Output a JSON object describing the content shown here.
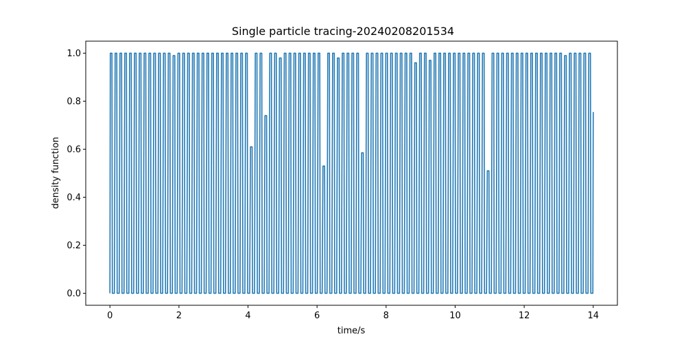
{
  "chart_data": {
    "type": "line",
    "title": "Single particle tracing-20240208201534",
    "xlabel": "time/s",
    "ylabel": "density function",
    "xlim": [
      -0.7,
      14.7
    ],
    "ylim": [
      -0.05,
      1.05
    ],
    "x_ticks": [
      0,
      2,
      4,
      6,
      8,
      10,
      12,
      14
    ],
    "x_tick_labels": [
      "0",
      "2",
      "4",
      "6",
      "8",
      "10",
      "12",
      "14"
    ],
    "y_ticks": [
      0.0,
      0.2,
      0.4,
      0.6,
      0.8,
      1.0
    ],
    "y_tick_labels": [
      "0.0",
      "0.2",
      "0.4",
      "0.6",
      "0.8",
      "1.0"
    ],
    "grid": false,
    "series": [
      {
        "color": "#1f77b4",
        "x_start": 0,
        "x_end": 14.0,
        "pulse_count": 100,
        "pulse_low": 0,
        "pulse_high": 1.0,
        "end_value": 0.755,
        "partial_peaks": [
          {
            "x": 1.9,
            "y": 0.99
          },
          {
            "x": 4.2,
            "y": 0.61
          },
          {
            "x": 4.55,
            "y": 0.74
          },
          {
            "x": 4.95,
            "y": 0.98
          },
          {
            "x": 6.25,
            "y": 0.53
          },
          {
            "x": 6.7,
            "y": 0.98
          },
          {
            "x": 7.38,
            "y": 0.585
          },
          {
            "x": 8.95,
            "y": 0.96
          },
          {
            "x": 9.35,
            "y": 0.97
          },
          {
            "x": 11.05,
            "y": 0.51
          },
          {
            "x": 13.3,
            "y": 0.99
          }
        ]
      }
    ]
  }
}
